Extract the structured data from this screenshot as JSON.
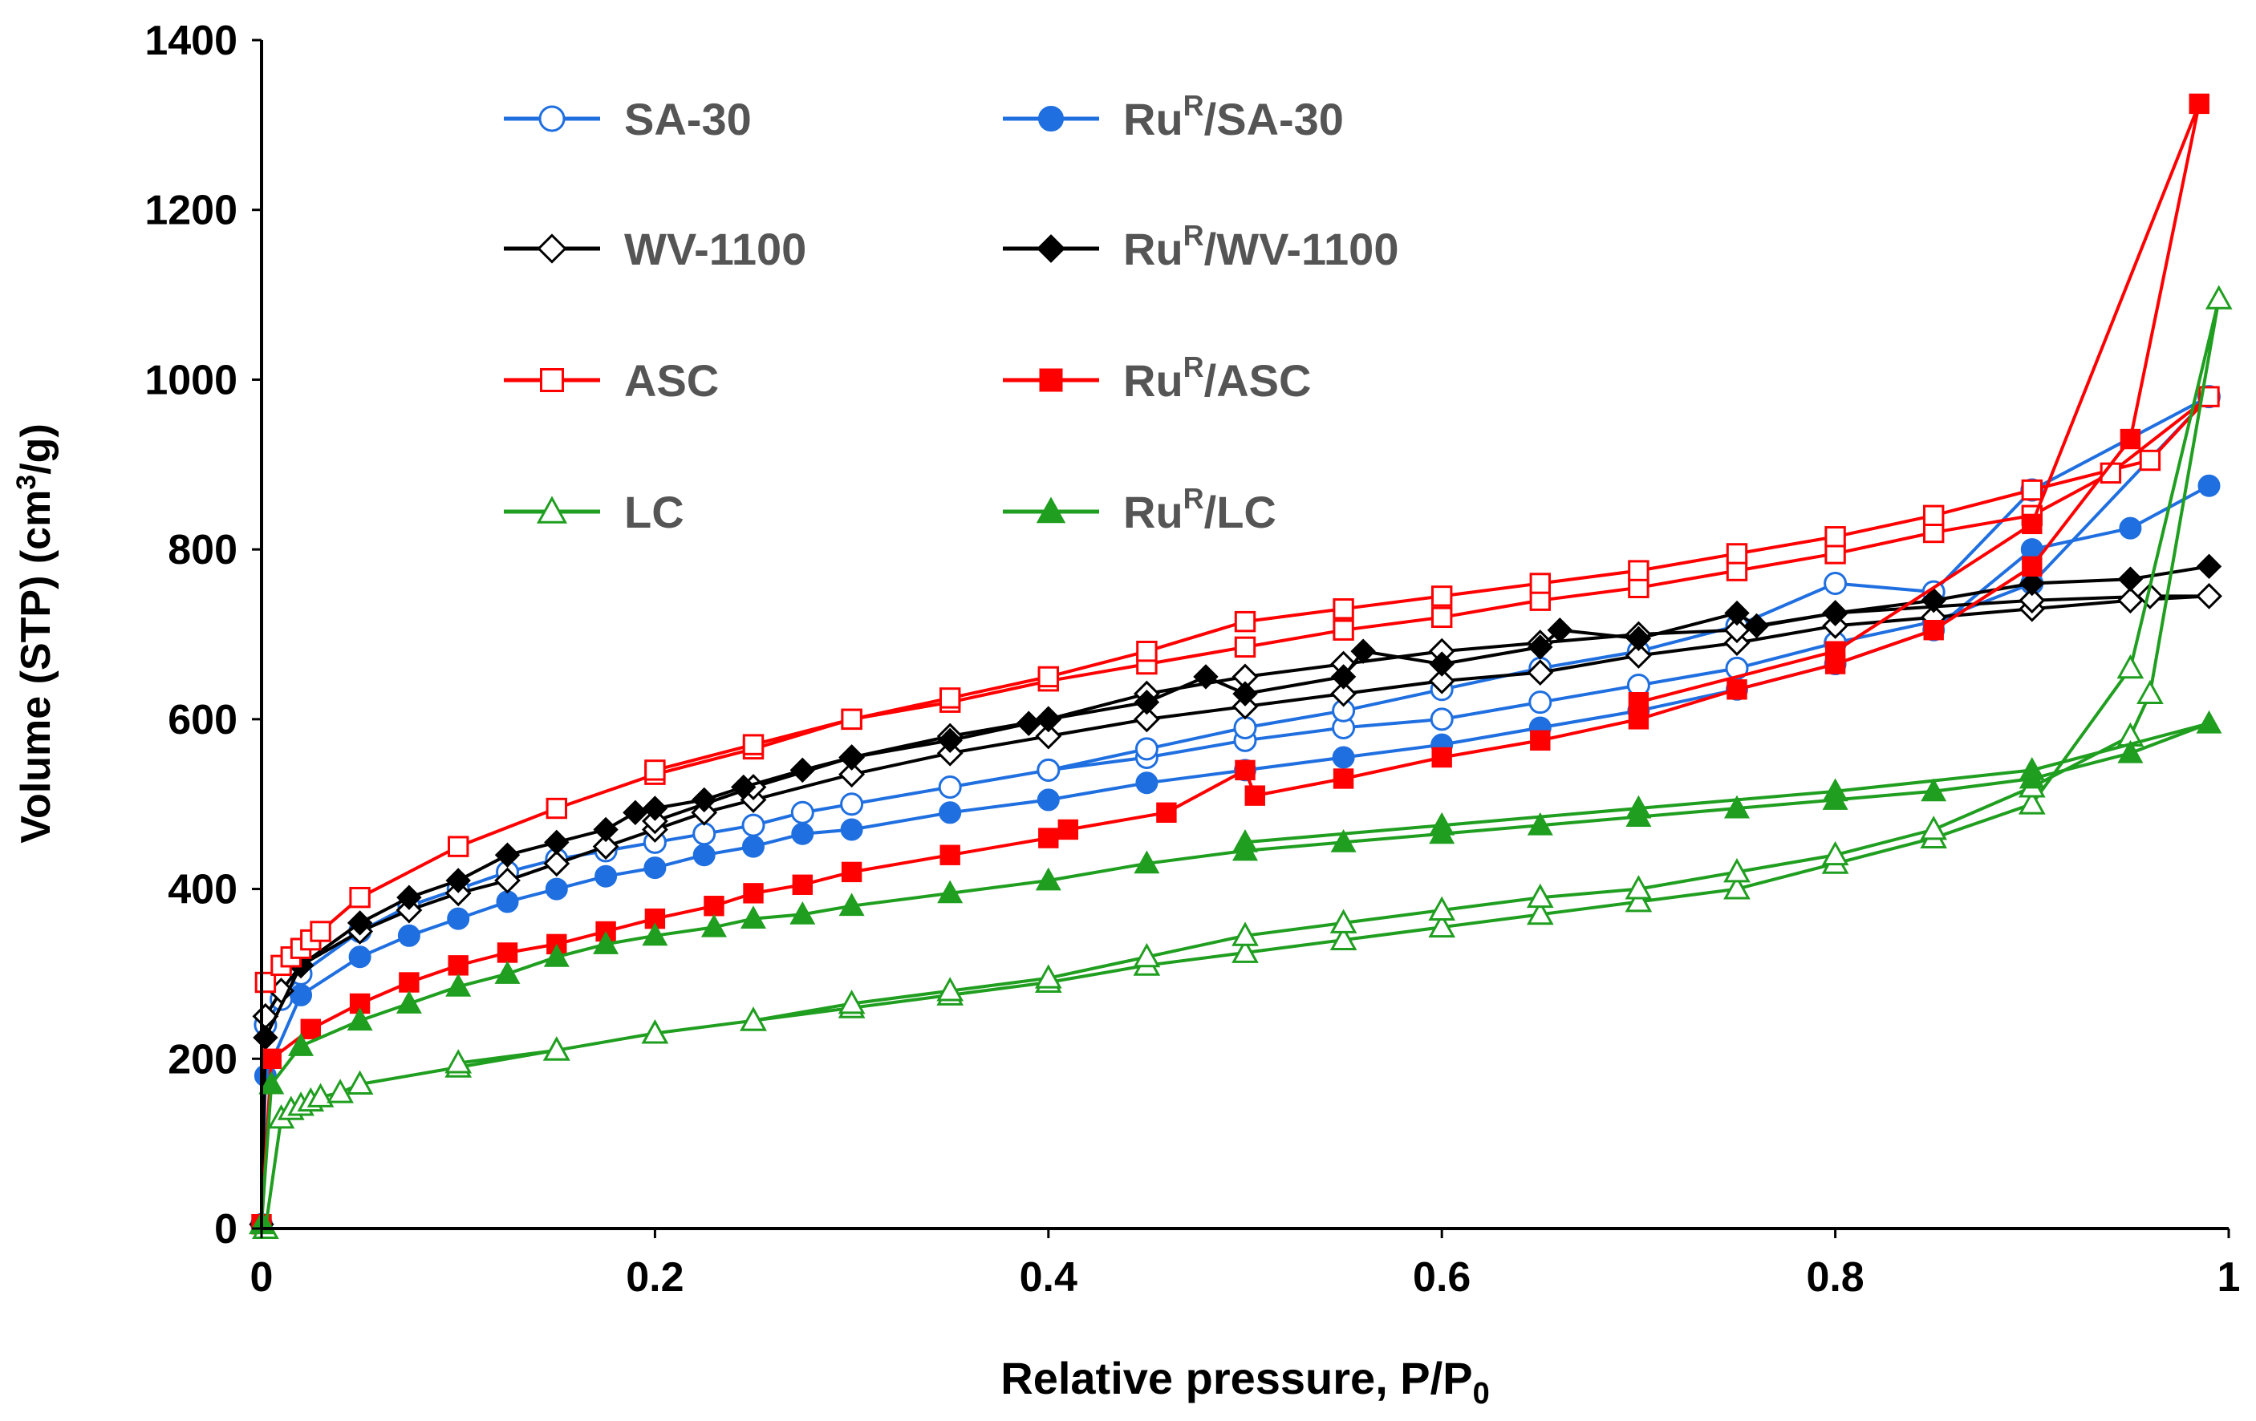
{
  "chart_data": {
    "type": "scatter",
    "xlabel": "Relative pressure, P/P",
    "xlabel_sub": "0",
    "ylabel": "Volume (STP) (cm",
    "ylabel_sup": "3",
    "ylabel_end": "/g)",
    "xlim": [
      0,
      1
    ],
    "ylim": [
      0,
      1400
    ],
    "x_ticks": [
      {
        "value": 0,
        "label": "0"
      },
      {
        "value": 0.2,
        "label": "0.2"
      },
      {
        "value": 0.4,
        "label": "0.4"
      },
      {
        "value": 0.6,
        "label": "0.6"
      },
      {
        "value": 0.8,
        "label": "0.8"
      },
      {
        "value": 1,
        "label": "1"
      }
    ],
    "y_ticks": [
      {
        "value": 0,
        "label": "0"
      },
      {
        "value": 200,
        "label": "200"
      },
      {
        "value": 400,
        "label": "400"
      },
      {
        "value": 600,
        "label": "600"
      },
      {
        "value": 800,
        "label": "800"
      },
      {
        "value": 1000,
        "label": "1000"
      },
      {
        "value": 1200,
        "label": "1200"
      },
      {
        "value": 1400,
        "label": "1400"
      }
    ],
    "grid": false,
    "legend_placement": "top-left inside plot, two columns",
    "series": [
      {
        "name": "SA-30",
        "name_pre": "",
        "name_sup": "",
        "name_post": "SA-30",
        "color": "#1f6fe0",
        "marker": "circle",
        "filled": false,
        "x": [
          0.002,
          0.01,
          0.02,
          0.05,
          0.075,
          0.1,
          0.125,
          0.15,
          0.175,
          0.2,
          0.225,
          0.25,
          0.275,
          0.3,
          0.35,
          0.4,
          0.45,
          0.5,
          0.55,
          0.6,
          0.65,
          0.7,
          0.75,
          0.8,
          0.85,
          0.9,
          0.99,
          0.9,
          0.85,
          0.8,
          0.75,
          0.7,
          0.65,
          0.6,
          0.55,
          0.5,
          0.45,
          0.4
        ],
        "y": [
          240,
          270,
          300,
          350,
          380,
          400,
          420,
          435,
          445,
          455,
          465,
          475,
          490,
          500,
          520,
          540,
          555,
          575,
          590,
          600,
          620,
          640,
          660,
          690,
          715,
          760,
          980,
          870,
          750,
          760,
          710,
          680,
          660,
          635,
          610,
          590,
          565,
          540
        ]
      },
      {
        "name": "RuR/SA-30",
        "name_pre": "Ru",
        "name_sup": "R",
        "name_post": "/SA-30",
        "color": "#1f6fe0",
        "marker": "circle",
        "filled": true,
        "x": [
          0,
          0.002,
          0.02,
          0.05,
          0.075,
          0.1,
          0.125,
          0.15,
          0.175,
          0.2,
          0.225,
          0.25,
          0.275,
          0.3,
          0.35,
          0.4,
          0.45,
          0.5,
          0.55,
          0.6,
          0.65,
          0.7,
          0.75,
          0.8,
          0.85,
          0.9,
          0.95,
          0.99
        ],
        "y": [
          5,
          180,
          275,
          320,
          345,
          365,
          385,
          400,
          415,
          425,
          440,
          450,
          465,
          470,
          490,
          505,
          525,
          540,
          555,
          570,
          590,
          610,
          635,
          665,
          705,
          800,
          825,
          875
        ]
      },
      {
        "name": "WV-1100",
        "name_pre": "",
        "name_sup": "",
        "name_post": "WV-1100",
        "color": "#000000",
        "marker": "diamond",
        "filled": false,
        "x": [
          0.002,
          0.01,
          0.02,
          0.05,
          0.075,
          0.1,
          0.125,
          0.15,
          0.175,
          0.2,
          0.225,
          0.25,
          0.3,
          0.35,
          0.4,
          0.45,
          0.5,
          0.55,
          0.6,
          0.65,
          0.7,
          0.75,
          0.8,
          0.85,
          0.9,
          0.95,
          0.99,
          0.96,
          0.9,
          0.8,
          0.75,
          0.7,
          0.65,
          0.6,
          0.55,
          0.5,
          0.45,
          0.4,
          0.35,
          0.3,
          0.25,
          0.2
        ],
        "y": [
          250,
          280,
          310,
          350,
          375,
          395,
          410,
          430,
          450,
          470,
          490,
          505,
          535,
          560,
          580,
          600,
          615,
          630,
          645,
          655,
          675,
          690,
          710,
          720,
          730,
          740,
          745,
          745,
          740,
          725,
          705,
          700,
          690,
          680,
          665,
          650,
          630,
          600,
          580,
          555,
          520,
          480
        ]
      },
      {
        "name": "RuR/WV-1100",
        "name_pre": "Ru",
        "name_sup": "R",
        "name_post": "/WV-1100",
        "color": "#000000",
        "marker": "diamond",
        "filled": true,
        "x": [
          0,
          0.002,
          0.02,
          0.05,
          0.075,
          0.1,
          0.125,
          0.15,
          0.175,
          0.19,
          0.2,
          0.225,
          0.245,
          0.275,
          0.3,
          0.35,
          0.39,
          0.4,
          0.45,
          0.48,
          0.5,
          0.55,
          0.56,
          0.6,
          0.65,
          0.66,
          0.7,
          0.75,
          0.76,
          0.8,
          0.85,
          0.9,
          0.95,
          0.99
        ],
        "y": [
          5,
          225,
          310,
          360,
          390,
          410,
          440,
          455,
          470,
          490,
          495,
          505,
          520,
          540,
          555,
          575,
          595,
          600,
          620,
          650,
          630,
          650,
          680,
          665,
          685,
          705,
          695,
          725,
          710,
          725,
          740,
          760,
          765,
          780
        ]
      },
      {
        "name": "ASC",
        "name_pre": "",
        "name_sup": "",
        "name_post": "ASC",
        "color": "#ff0000",
        "marker": "square",
        "filled": false,
        "x": [
          0.002,
          0.01,
          0.015,
          0.02,
          0.025,
          0.03,
          0.05,
          0.1,
          0.15,
          0.2,
          0.25,
          0.3,
          0.35,
          0.4,
          0.45,
          0.5,
          0.55,
          0.6,
          0.65,
          0.7,
          0.75,
          0.8,
          0.85,
          0.9,
          0.94,
          0.99,
          0.96,
          0.9,
          0.85,
          0.8,
          0.75,
          0.7,
          0.65,
          0.6,
          0.55,
          0.5,
          0.45,
          0.4,
          0.35,
          0.3,
          0.25,
          0.2
        ],
        "y": [
          290,
          310,
          320,
          330,
          340,
          350,
          390,
          450,
          495,
          535,
          565,
          600,
          620,
          645,
          665,
          685,
          705,
          720,
          740,
          755,
          775,
          795,
          820,
          840,
          890,
          980,
          905,
          870,
          840,
          815,
          795,
          775,
          760,
          745,
          730,
          715,
          680,
          650,
          625,
          600,
          570,
          540
        ]
      },
      {
        "name": "RuR/ASC",
        "name_pre": "Ru",
        "name_sup": "R",
        "name_post": "/ASC",
        "color": "#ff0000",
        "marker": "square",
        "filled": true,
        "x": [
          0,
          0.005,
          0.025,
          0.05,
          0.075,
          0.1,
          0.125,
          0.15,
          0.175,
          0.2,
          0.23,
          0.25,
          0.275,
          0.3,
          0.35,
          0.4,
          0.41,
          0.46,
          0.5,
          0.505,
          0.55,
          0.6,
          0.65,
          0.7,
          0.75,
          0.8,
          0.85,
          0.9,
          0.95,
          0.985,
          0.9,
          0.8,
          0.7
        ],
        "y": [
          5,
          200,
          235,
          265,
          290,
          310,
          325,
          335,
          350,
          365,
          380,
          395,
          405,
          420,
          440,
          460,
          470,
          490,
          540,
          510,
          530,
          555,
          575,
          600,
          635,
          665,
          705,
          780,
          930,
          1325,
          830,
          680,
          620
        ]
      },
      {
        "name": "LC",
        "name_pre": "",
        "name_sup": "",
        "name_post": "LC",
        "color": "#1f9e1f",
        "marker": "triangle",
        "filled": false,
        "x": [
          0.002,
          0.01,
          0.015,
          0.02,
          0.025,
          0.03,
          0.04,
          0.05,
          0.1,
          0.15,
          0.2,
          0.25,
          0.3,
          0.35,
          0.4,
          0.45,
          0.5,
          0.55,
          0.6,
          0.65,
          0.7,
          0.75,
          0.8,
          0.85,
          0.9,
          0.95,
          0.995,
          0.96,
          0.95,
          0.9,
          0.85,
          0.8,
          0.75,
          0.7,
          0.65,
          0.6,
          0.55,
          0.5,
          0.45,
          0.4,
          0.35,
          0.3,
          0.25,
          0.2,
          0.15,
          0.1
        ],
        "y": [
          0,
          130,
          140,
          145,
          150,
          155,
          160,
          170,
          190,
          210,
          230,
          245,
          260,
          275,
          290,
          310,
          325,
          340,
          355,
          370,
          385,
          400,
          430,
          460,
          500,
          660,
          1095,
          630,
          580,
          520,
          470,
          440,
          420,
          400,
          390,
          375,
          360,
          345,
          320,
          295,
          280,
          265,
          245,
          230,
          210,
          195
        ]
      },
      {
        "name": "RuR/LC",
        "name_pre": "Ru",
        "name_sup": "R",
        "name_post": "/LC",
        "color": "#1f9e1f",
        "marker": "triangle",
        "filled": true,
        "x": [
          0,
          0.005,
          0.02,
          0.05,
          0.075,
          0.1,
          0.125,
          0.15,
          0.175,
          0.2,
          0.23,
          0.25,
          0.275,
          0.3,
          0.35,
          0.4,
          0.45,
          0.5,
          0.55,
          0.6,
          0.65,
          0.7,
          0.75,
          0.8,
          0.85,
          0.9,
          0.95,
          0.99,
          0.9,
          0.8,
          0.7,
          0.6,
          0.5
        ],
        "y": [
          5,
          170,
          215,
          245,
          265,
          285,
          300,
          320,
          335,
          345,
          355,
          365,
          370,
          380,
          395,
          410,
          430,
          445,
          455,
          465,
          475,
          485,
          495,
          505,
          515,
          530,
          560,
          595,
          540,
          515,
          495,
          475,
          455
        ]
      }
    ]
  }
}
